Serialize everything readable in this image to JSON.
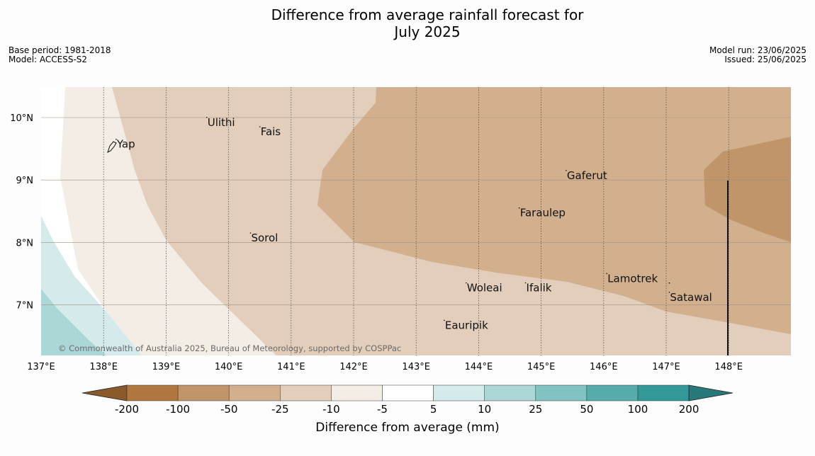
{
  "title": {
    "line1": "Difference from average rainfall forecast for",
    "line2": "July 2025"
  },
  "meta": {
    "base_period": "Base period: 1981-2018",
    "model": "Model: ACCESS-S2",
    "model_run": "Model run: 23/06/2025",
    "issued": "Issued: 25/06/2025"
  },
  "map": {
    "lon_range": [
      137,
      149
    ],
    "lat_range": [
      6.2,
      10.5
    ],
    "lon_ticks": [
      137,
      138,
      139,
      140,
      141,
      142,
      143,
      144,
      145,
      146,
      147,
      148
    ],
    "lon_labels": [
      "137°E",
      "138°E",
      "139°E",
      "140°E",
      "141°E",
      "142°E",
      "143°E",
      "144°E",
      "145°E",
      "146°E",
      "147°E",
      "148°E"
    ],
    "lat_ticks": [
      10,
      9,
      8,
      7
    ],
    "lat_labels": [
      "10°N",
      "9°N",
      "8°N",
      "7°N"
    ],
    "copyright": "© Commonwealth of Australia 2025, Bureau of Meteorology, supported by COSPPac",
    "places": [
      {
        "name": "Yap",
        "lon": 138.2,
        "lat": 9.55
      },
      {
        "name": "Ulithi",
        "lon": 139.65,
        "lat": 9.9
      },
      {
        "name": "Fais",
        "lon": 140.5,
        "lat": 9.75
      },
      {
        "name": "Gaferut",
        "lon": 145.4,
        "lat": 9.05
      },
      {
        "name": "Faraulep",
        "lon": 144.65,
        "lat": 8.45
      },
      {
        "name": "Sorol",
        "lon": 140.35,
        "lat": 8.05
      },
      {
        "name": "Lamotrek",
        "lon": 146.05,
        "lat": 7.4
      },
      {
        "name": "Woleai",
        "lon": 143.8,
        "lat": 7.25
      },
      {
        "name": "Ifalik",
        "lon": 144.75,
        "lat": 7.25
      },
      {
        "name": "Satawal",
        "lon": 147.05,
        "lat": 7.1
      },
      {
        "name": "Eauripik",
        "lon": 143.45,
        "lat": 6.65
      }
    ]
  },
  "colorbar": {
    "label": "Difference from average (mm)",
    "ticks": [
      "-200",
      "-100",
      "-50",
      "-25",
      "-10",
      "-5",
      "5",
      "10",
      "25",
      "50",
      "100",
      "200"
    ],
    "colors": [
      "#8a5a2a",
      "#b07840",
      "#c0956a",
      "#d2b08e",
      "#e2cebb",
      "#f3ede6",
      "#ffffff",
      "#d5eaea",
      "#acd7d7",
      "#82c2c2",
      "#58abab",
      "#339898",
      "#287a7a"
    ]
  },
  "regions": {
    "colors": {
      "very_dry": "#c0956a",
      "dry": "#d2b08e",
      "mod_dry": "#e2cebb",
      "slight_dry": "#f3ede6",
      "neutral": "#ffffff",
      "slight_wet": "#d5eaea",
      "wet": "#acd7d7"
    }
  }
}
